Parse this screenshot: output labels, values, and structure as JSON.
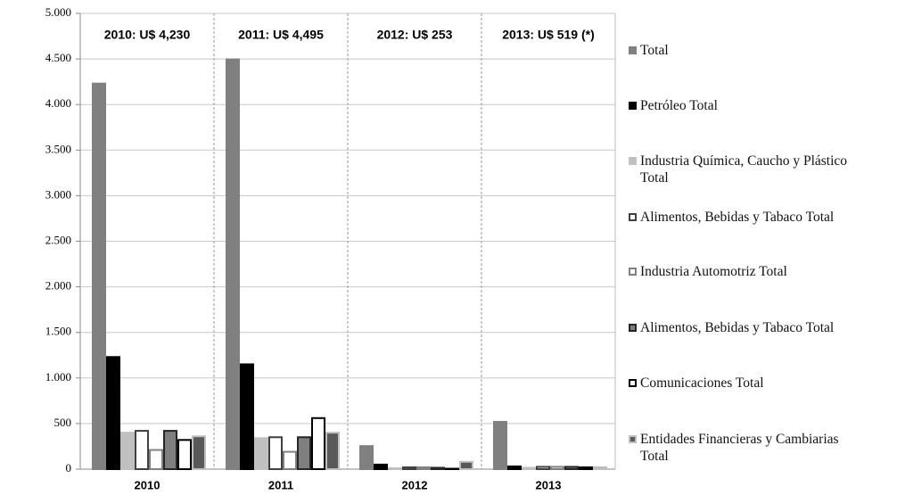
{
  "chart_data": {
    "type": "bar",
    "categories": [
      "2010",
      "2011",
      "2012",
      "2013"
    ],
    "annotations": [
      "2010: U$ 4,230",
      "2011: U$ 4,495",
      "2012: U$ 253",
      "2013: U$ 519 (*)"
    ],
    "series": [
      {
        "name": "Total",
        "color": "#808080",
        "edgecolor": "#808080",
        "values": [
          4230,
          4495,
          253,
          519
        ]
      },
      {
        "name": "Petróleo Total",
        "color": "#000000",
        "edgecolor": "#000000",
        "values": [
          1230,
          1150,
          50,
          30
        ]
      },
      {
        "name": "Industria Química, Caucho y Plástico Total",
        "color": "#c0c0c0",
        "edgecolor": "#c0c0c0",
        "values": [
          400,
          340,
          10,
          15
        ]
      },
      {
        "name": "Alimentos, Bebidas y Tabaco Total",
        "color": "#ffffff",
        "edgecolor": "#404040",
        "values": [
          420,
          350,
          20,
          25
        ]
      },
      {
        "name": "Industria Automotriz Total",
        "color": "#ffffff",
        "edgecolor": "#808080",
        "values": [
          210,
          190,
          20,
          25
        ]
      },
      {
        "name": "Alimentos, Bebidas y Tabaco Total",
        "color": "#7f7f7f",
        "edgecolor": "#262626",
        "values": [
          420,
          350,
          15,
          25
        ]
      },
      {
        "name": "Comunicaciones Total",
        "color": "#ffffff",
        "edgecolor": "#000000",
        "values": [
          320,
          560,
          5,
          20
        ]
      },
      {
        "name": "Entidades Financieras y Cambiarias Total",
        "color": "#595959",
        "edgecolor": "#bfbfbf",
        "values": [
          360,
          400,
          80,
          20
        ]
      }
    ],
    "ylim": [
      0,
      5000
    ],
    "yticks": [
      {
        "value": 0,
        "label": "0"
      },
      {
        "value": 500,
        "label": "500"
      },
      {
        "value": 1000,
        "label": "1.000"
      },
      {
        "value": 1500,
        "label": "1.500"
      },
      {
        "value": 2000,
        "label": "2.000"
      },
      {
        "value": 2500,
        "label": "2.500"
      },
      {
        "value": 3000,
        "label": "3.000"
      },
      {
        "value": 3500,
        "label": "3.500"
      },
      {
        "value": 4000,
        "label": "4.000"
      },
      {
        "value": 4500,
        "label": "4.500"
      },
      {
        "value": 5000,
        "label": "5.000"
      }
    ],
    "grid": true
  }
}
